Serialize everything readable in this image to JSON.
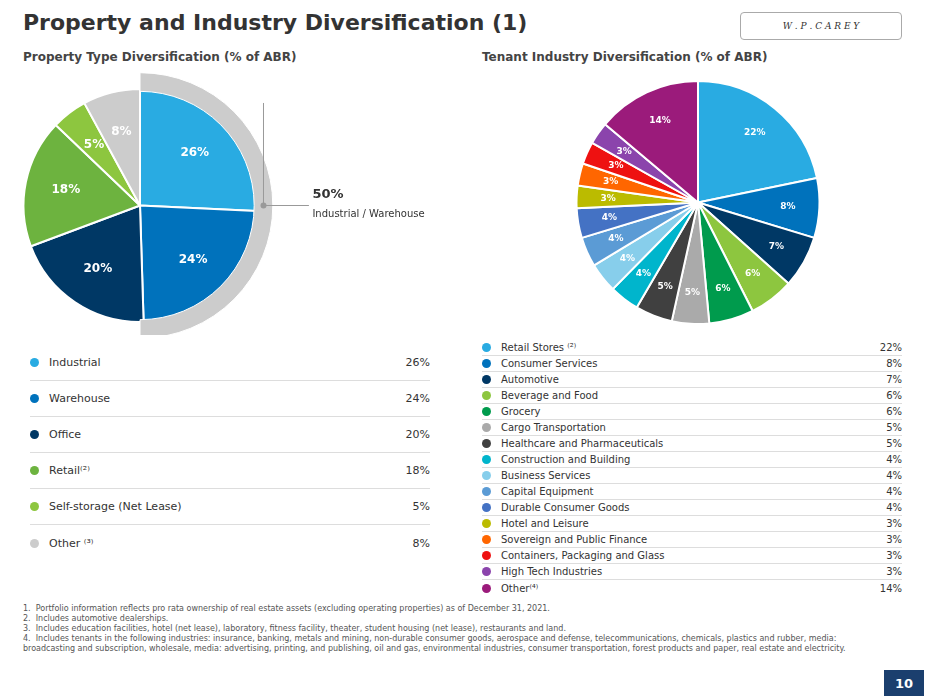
{
  "title": "Property and Industry Diversification (1)",
  "logo_text": "W . P . C A R E Y",
  "page_number": "10",
  "footnotes": [
    "1.  Portfolio information reflects pro rata ownership of real estate assets (excluding operating properties) as of December 31, 2021.",
    "2.  Includes automotive dealerships.",
    "3.  Includes education facilities, hotel (net lease), laboratory, fitness facility, theater, student housing (net lease), restaurants and land.",
    "4.  Includes tenants in the following industries: insurance, banking, metals and mining, non-durable consumer goods, aerospace and defense, telecommunications, chemicals, plastics and rubber, media: broadcasting and subscription, wholesale, media: advertising, printing, and publishing, oil and gas, environmental industries, consumer transportation, forest products and paper, real estate and electricity."
  ],
  "chart_data": [
    {
      "type": "pie",
      "subtitle": "Property Type Diversification (% of ABR)",
      "categories": [
        "Industrial",
        "Warehouse",
        "Office",
        "Retail⁽²⁾",
        "Self-storage (Net Lease)",
        "Other ⁽³⁾"
      ],
      "values": [
        26,
        24,
        20,
        18,
        5,
        8
      ],
      "value_labels": [
        "26%",
        "24%",
        "20%",
        "18%",
        "5%",
        "8%"
      ],
      "colors": [
        "#29ABE2",
        "#0072BC",
        "#003865",
        "#6DB33F",
        "#8DC63F",
        "#CCCCCC"
      ],
      "data_labels": true,
      "legend": "bottom",
      "annotations": [
        "50%",
        "Industrial / Warehouse"
      ]
    },
    {
      "type": "pie",
      "subtitle": "Tenant Industry Diversification (% of ABR)",
      "categories": [
        "Retail Stores ⁽²⁾",
        "Consumer Services",
        "Automotive",
        "Beverage and Food",
        "Grocery",
        "Cargo Transportation",
        "Healthcare and Pharmaceuticals",
        "Construction and Building",
        "Business Services",
        "Capital Equipment",
        "Durable Consumer Goods",
        "Hotel and Leisure",
        "Sovereign and Public Finance",
        "Containers, Packaging and Glass",
        "High Tech Industries",
        "Other⁽⁴⁾"
      ],
      "values": [
        22,
        8,
        7,
        6,
        6,
        5,
        5,
        4,
        4,
        4,
        4,
        3,
        3,
        3,
        3,
        14
      ],
      "value_labels": [
        "22%",
        "8%",
        "7%",
        "6%",
        "6%",
        "5%",
        "5%",
        "4%",
        "4%",
        "4%",
        "4%",
        "3%",
        "3%",
        "3%",
        "3%",
        "14%"
      ],
      "colors": [
        "#29ABE2",
        "#0072BC",
        "#003865",
        "#8DC63F",
        "#009B4D",
        "#AAAAAA",
        "#404040",
        "#00B5CC",
        "#87CEEB",
        "#5B9BD5",
        "#4472C4",
        "#BBBB00",
        "#FF6600",
        "#EE1111",
        "#8B44AC",
        "#9B1B7B"
      ],
      "data_labels": true,
      "legend": "bottom"
    }
  ]
}
